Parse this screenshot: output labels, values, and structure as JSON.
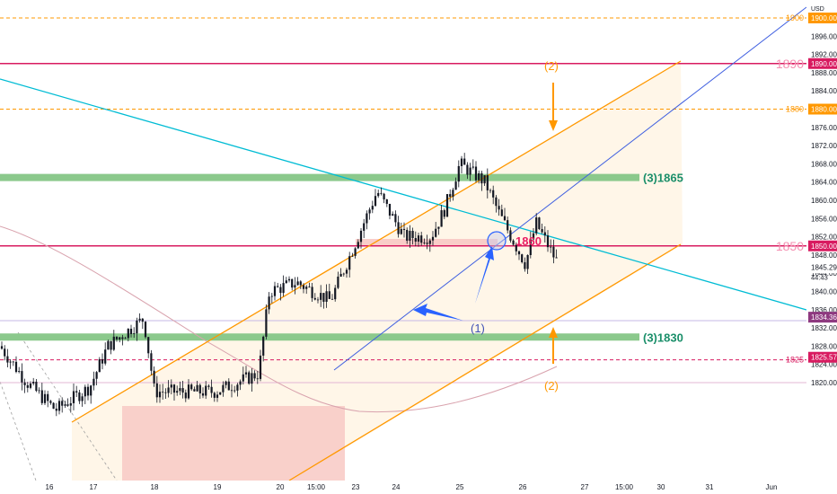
{
  "chart_data": {
    "type": "candlestick",
    "currency": "USD",
    "ylim": [
      1817,
      1904
    ],
    "price_ticks": [
      1900,
      1896,
      1892,
      1888,
      1884,
      1880,
      1876,
      1872,
      1868,
      1864,
      1860,
      1856,
      1852,
      1848,
      1844,
      1840,
      1836,
      1832,
      1828,
      1824,
      1820
    ],
    "price_tick_labels": [
      "1900.00",
      "1896.00",
      "1892.00",
      "1888.00",
      "1884.00",
      "1880.00",
      "1876.00",
      "1872.00",
      "1868.00",
      "1864.00",
      "1860.00",
      "1856.00",
      "1852.00",
      "1848.00",
      "1844.00",
      "1840.00",
      "1836.00",
      "1832.00",
      "1828.00",
      "1824.00",
      "1820.00"
    ],
    "x_ticks": [
      "16",
      "17",
      "18",
      "19",
      "20",
      "15:00",
      "23",
      "24",
      "25",
      "26",
      "27",
      "15:00",
      "30",
      "31",
      "Jun"
    ],
    "price_badges": [
      {
        "price": 1900,
        "label": "1900.00",
        "color": "#ff9800"
      },
      {
        "price": 1890,
        "label": "1890.00",
        "color": "#d81b60"
      },
      {
        "price": 1880,
        "label": "1880.00",
        "color": "#ff9800"
      },
      {
        "price": 1850,
        "label": "1850.00",
        "color": "#d81b60"
      },
      {
        "price": 1845.29,
        "label": "1845.29",
        "color": "#ffffff",
        "text_color": "#131722"
      },
      {
        "price": 1834.36,
        "label": "1834.36",
        "color": "#8e3a80"
      },
      {
        "price": 1825.57,
        "label": "1825.57",
        "color": "#d81b60"
      }
    ],
    "countdown": "44:43",
    "level_lines": [
      {
        "price": 1900,
        "label": "1900",
        "color": "#ff9800",
        "style": "dashed"
      },
      {
        "price": 1890,
        "label": "1890",
        "color": "#d81b60",
        "style": "solid"
      },
      {
        "price": 1880,
        "label": "1880",
        "color": "#ff9800",
        "style": "dashed"
      },
      {
        "price": 1850,
        "label": "1850",
        "color": "#d81b60",
        "style": "solid"
      },
      {
        "price": 1825,
        "label": "1825",
        "color": "#d81b60",
        "style": "dashed"
      }
    ],
    "zones": [
      {
        "price": 1865,
        "label": "(3)1865",
        "color": "#8bc98c"
      },
      {
        "price": 1830,
        "label": "(3)1830",
        "color": "#8bc98c"
      }
    ],
    "annotations": {
      "label_1860": "1860",
      "label_1": "(1)",
      "label_2": "(2)",
      "channel_color": "#ff9800",
      "trend_color": "#00bcd4",
      "mid_line_color": "#3f5fe0",
      "arrow_blue": "#2962ff",
      "arrow_orange": "#ff9800",
      "ma_color": "#d9a3ae"
    },
    "colors": {
      "up": "#26a69a",
      "down": "#ef5350",
      "candle": "#131722"
    }
  }
}
